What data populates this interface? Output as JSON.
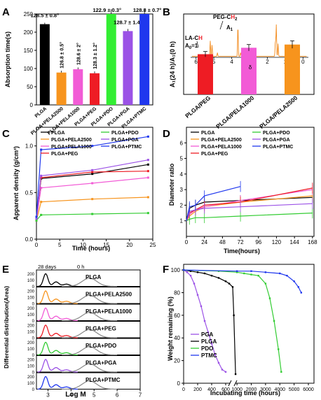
{
  "panelA": {
    "letter": "A",
    "ylabel": "Absorption time(s)",
    "ylim": [
      0,
      250
    ],
    "yticks": [
      0,
      50,
      100,
      150,
      200,
      250
    ],
    "chart_data": {
      "type": "bar",
      "categories": [
        "PLGA",
        "PLGA+PELA2500",
        "PLGA+PELA1000",
        "PLGA+PEG",
        "PLGA+PDO",
        "PLGA+PGA",
        "PLGA+PTMC"
      ],
      "values": [
        222,
        89,
        98,
        87,
        260,
        203,
        260
      ],
      "errors": [
        4,
        5,
        5,
        5,
        3,
        6,
        3
      ],
      "colors": [
        "#000000",
        "#f7941d",
        "#f25bd6",
        "#ee1c24",
        "#33ee33",
        "#9b52e6",
        "#1f37ee"
      ],
      "angle_labels": [
        "128.5 ± 0.8°",
        "126.8 ± 0.5°",
        "128.6 ± 2°",
        "128.3 ± 1.2°",
        "122.9 ± 0.3°",
        "128.7 ± 1.4°",
        "128.8 ± 0.7°"
      ]
    }
  },
  "panelB": {
    "letter": "B",
    "ylabel": "A₁(24 h)/A₁(0 h)",
    "nmr_ticks": [
      "6",
      "5",
      "4",
      "3",
      "2",
      "1",
      "0"
    ],
    "delta_label": "δ",
    "ann_peg_prefix": "PEG-C",
    "ann_peg_h": "H",
    "ann_peg_sub": "2",
    "ann_la_prefix": "LA-C",
    "ann_la_h": "H",
    "ann_a1": "A",
    "ann_a1_sub": "1",
    "ann_a0": "A",
    "ann_a0_sub": "0",
    "ann_a0_eq": "=1",
    "chart_data": {
      "type": "bar",
      "categories": [
        "PLGA/PEG",
        "PLGA/PELA1000",
        "PLGA/PELA2500"
      ],
      "values": [
        0.75,
        0.87,
        0.93
      ],
      "errors": [
        0.05,
        0.06,
        0.07
      ],
      "colors": [
        "#ee1c24",
        "#f25bd6",
        "#f7941d"
      ],
      "ylim": [
        0,
        1.5
      ]
    }
  },
  "panelC": {
    "letter": "C",
    "xlabel": "Time (hours)",
    "ylabel": "Apparent density (g/cm³)",
    "xlim": [
      0,
      25
    ],
    "ylim": [
      0,
      1.2
    ],
    "xticks": [
      0,
      5,
      10,
      15,
      20,
      25
    ],
    "yticks": [
      0.0,
      0.5,
      1.0
    ],
    "chart_data": {
      "type": "line",
      "x": [
        0,
        1,
        12,
        24
      ],
      "series": [
        {
          "name": "PLGA",
          "color": "#000000",
          "values": [
            0.22,
            0.65,
            0.7,
            0.8
          ]
        },
        {
          "name": "PLGA+PELA2500",
          "color": "#f7941d",
          "values": [
            0.2,
            0.4,
            0.43,
            0.45
          ]
        },
        {
          "name": "PLGA+PELA1000",
          "color": "#f25bd6",
          "values": [
            0.21,
            0.55,
            0.6,
            0.66
          ]
        },
        {
          "name": "PLGA+PEG",
          "color": "#ee1c24",
          "values": [
            0.23,
            0.66,
            0.72,
            0.73
          ]
        },
        {
          "name": "PLGA+PDO",
          "color": "#33cc33",
          "values": [
            0.2,
            0.26,
            0.27,
            0.28
          ]
        },
        {
          "name": "PLGA+PGA",
          "color": "#9b52e6",
          "values": [
            0.22,
            0.68,
            0.74,
            0.85
          ]
        },
        {
          "name": "PLGA+PTMC",
          "color": "#1f37ee",
          "values": [
            0.24,
            0.96,
            1.0,
            1.1
          ]
        }
      ]
    }
  },
  "panelD": {
    "letter": "D",
    "xlabel": "Time(hours)",
    "ylabel": "Diameter ratio",
    "xlim": [
      0,
      170
    ],
    "ylim": [
      0,
      7
    ],
    "xticks": [
      0,
      24,
      48,
      72,
      96,
      120,
      144,
      168
    ],
    "yticks": [
      1,
      2,
      3,
      4,
      5,
      6
    ],
    "chart_data": {
      "type": "line",
      "series": [
        {
          "name": "PLGA",
          "color": "#000000",
          "x": [
            0,
            4,
            12,
            24,
            72,
            168
          ],
          "values": [
            1.0,
            1.8,
            2.0,
            2.2,
            2.3,
            2.5
          ]
        },
        {
          "name": "PLGA+PELA2500",
          "color": "#f7941d",
          "x": [
            0,
            4,
            12,
            24,
            72,
            168
          ],
          "values": [
            1.0,
            1.3,
            1.6,
            1.9,
            2.2,
            2.6
          ]
        },
        {
          "name": "PLGA+PELA1000",
          "color": "#f25bd6",
          "x": [
            0,
            4,
            12,
            24,
            72,
            168
          ],
          "values": [
            1.0,
            1.4,
            1.7,
            1.9,
            2.3,
            3.0
          ]
        },
        {
          "name": "PLGA+PEG",
          "color": "#ee1c24",
          "x": [
            0,
            4,
            12,
            24,
            72,
            168
          ],
          "values": [
            1.0,
            1.5,
            1.7,
            2.0,
            2.2,
            3.1
          ]
        },
        {
          "name": "PLGA+PDO",
          "color": "#33cc33",
          "x": [
            0,
            4,
            12,
            24,
            72,
            168
          ],
          "values": [
            1.0,
            1.1,
            1.2,
            1.2,
            1.3,
            1.5
          ]
        },
        {
          "name": "PLGA+PGA",
          "color": "#9b52e6",
          "x": [
            0,
            4,
            12,
            24,
            72,
            168
          ],
          "values": [
            1.0,
            1.6,
            1.7,
            1.8,
            1.9,
            2.1
          ]
        },
        {
          "name": "PLGA+PTMC",
          "color": "#1f37ee",
          "x": [
            0,
            4,
            12,
            24,
            72
          ],
          "values": [
            1.0,
            1.9,
            2.0,
            2.6,
            3.2
          ]
        }
      ]
    }
  },
  "panelE": {
    "letter": "E",
    "xlabel": "Log M",
    "ylabel": "Differential distribution(Area)",
    "label_28d": "28 days",
    "label_0h": "0 h",
    "xlim": [
      2.5,
      7
    ],
    "xticks": [
      3,
      4,
      5,
      6,
      7
    ],
    "sub_yticks": [
      0,
      100,
      200
    ],
    "chart_data": {
      "type": "line",
      "panels": [
        {
          "name": "PLGA",
          "color": "#000000",
          "peak_logM": 2.9
        },
        {
          "name": "PLGA+PELA2500",
          "color": "#f7941d",
          "peak_logM": 2.9
        },
        {
          "name": "PLGA+PELA1000",
          "color": "#f25bd6",
          "peak_logM": 2.9
        },
        {
          "name": "PLGA+PEG",
          "color": "#ee1c24",
          "peak_logM": 2.9
        },
        {
          "name": "PLGA+PDO",
          "color": "#33cc33",
          "peak_logM": 2.9
        },
        {
          "name": "PLGA+PGA",
          "color": "#9b52e6",
          "peak_logM": 2.9
        },
        {
          "name": "PLGA+PTMC",
          "color": "#1f37ee",
          "peak_logM": 2.9
        }
      ],
      "reference": {
        "name": "0 h",
        "color": "#888888",
        "peak_logM": 4.8
      }
    }
  },
  "panelF": {
    "letter": "F",
    "xlabel": "Incubating time (hours)",
    "ylabel": "Weight remaining (%)",
    "ylim": [
      0,
      105
    ],
    "yticks": [
      0,
      20,
      40,
      60,
      80,
      100
    ],
    "xticks_left": [
      0,
      200,
      400,
      600
    ],
    "xticks_right": [
      1000,
      2000,
      3000,
      4000,
      5000,
      6000
    ],
    "chart_data": {
      "type": "line",
      "series": [
        {
          "name": "PGA",
          "color": "#9b52e6",
          "x": [
            0,
            50,
            100,
            150,
            200,
            250,
            300,
            350,
            400,
            450,
            500,
            550,
            600
          ],
          "values": [
            100,
            98,
            95,
            88,
            78,
            68,
            55,
            45,
            35,
            25,
            18,
            12,
            10
          ]
        },
        {
          "name": "PLGA",
          "color": "#000000",
          "x": [
            0,
            100,
            200,
            300,
            400,
            500,
            600,
            650,
            700,
            780,
            900
          ],
          "values": [
            100,
            99,
            98,
            97,
            95,
            93,
            90,
            88,
            85,
            60,
            8
          ]
        },
        {
          "name": "PDO",
          "color": "#33cc33",
          "x": [
            0,
            500,
            1000,
            1500,
            2000,
            2500,
            3000,
            3300,
            3600,
            3900,
            4100
          ],
          "values": [
            100,
            99,
            98,
            97,
            96,
            95,
            88,
            75,
            55,
            30,
            10
          ]
        },
        {
          "name": "PTMC",
          "color": "#1f37ee",
          "x": [
            0,
            1000,
            2000,
            3000,
            4000,
            4500,
            5000,
            5300,
            5500
          ],
          "values": [
            100,
            99,
            99,
            98,
            97,
            95,
            90,
            85,
            80
          ]
        }
      ]
    }
  }
}
